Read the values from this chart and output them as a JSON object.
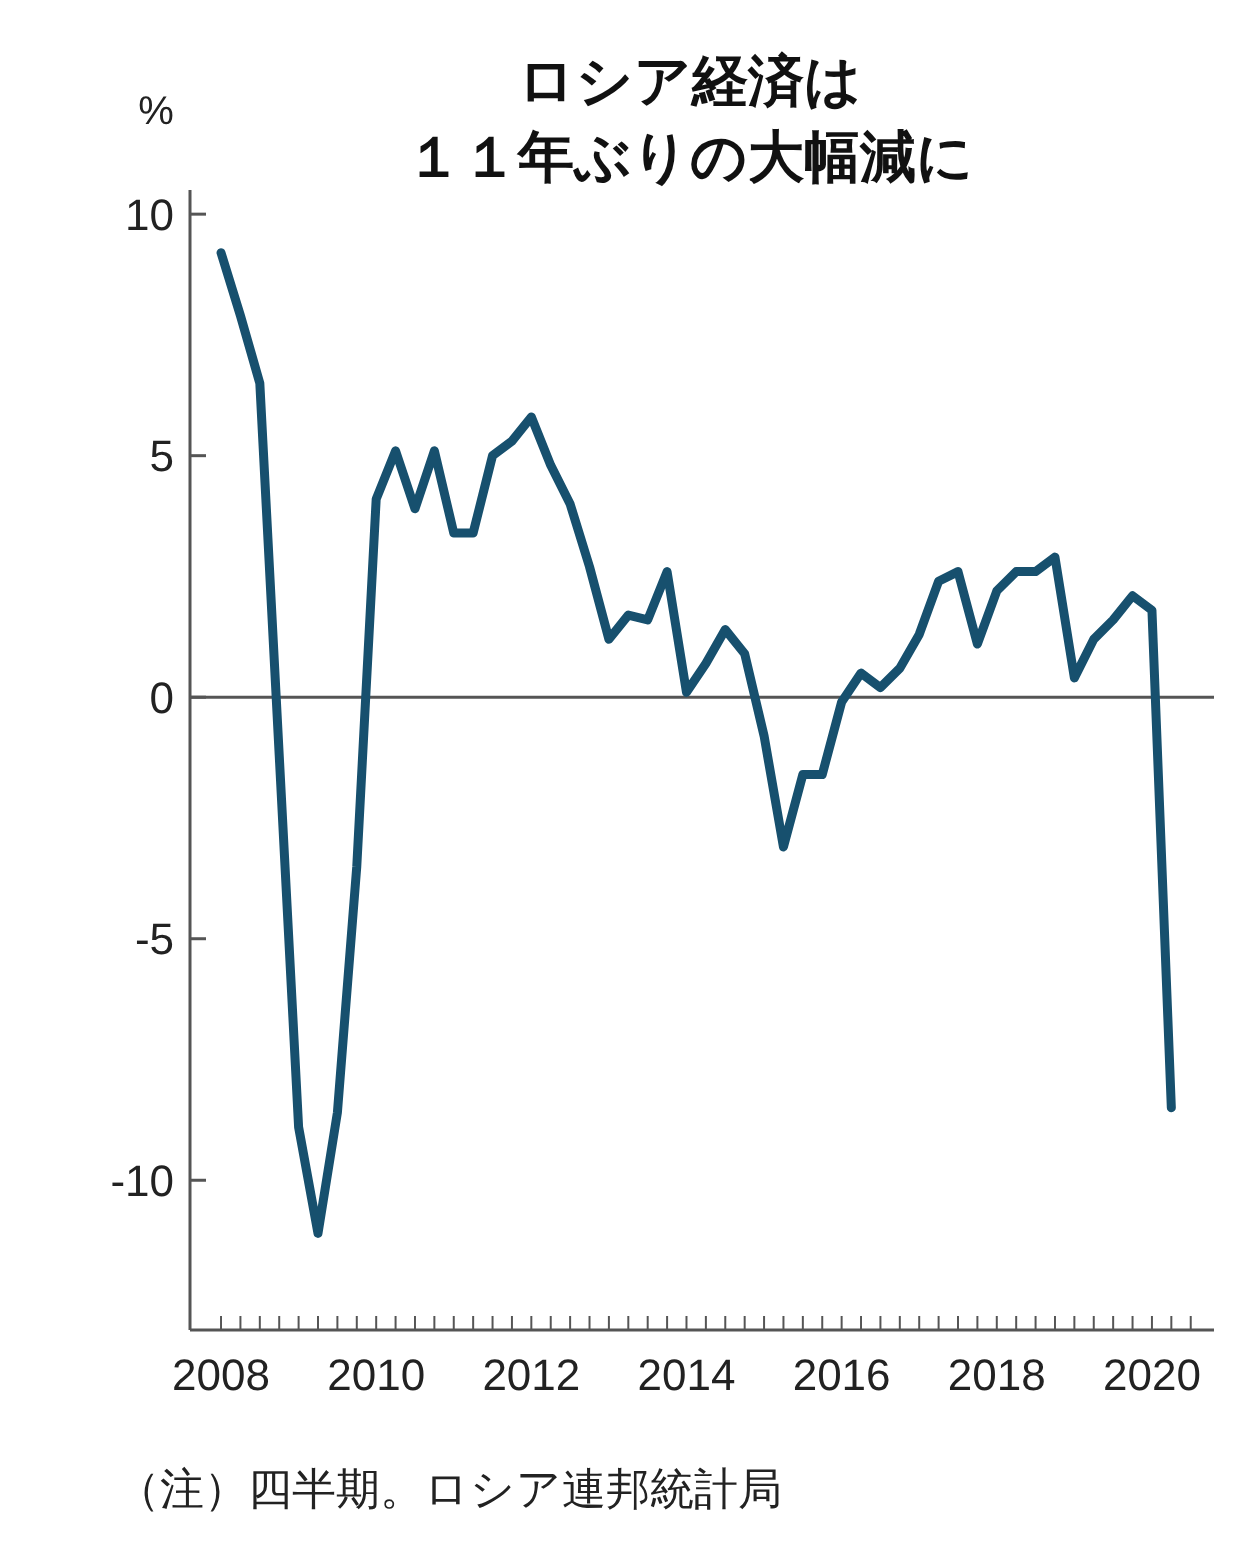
{
  "chart_data": {
    "type": "line",
    "title": "ロシア経済は",
    "subtitle": "１１年ぶりの大幅減に",
    "ylabel": "%",
    "annotations": [
      "（注）四半期。ロシア連邦統計局"
    ],
    "x": [
      2008,
      2008.25,
      2008.5,
      2008.75,
      2009,
      2009.25,
      2009.5,
      2009.75,
      2010,
      2010.25,
      2010.5,
      2010.75,
      2011,
      2011.25,
      2011.5,
      2011.75,
      2012,
      2012.25,
      2012.5,
      2012.75,
      2013,
      2013.25,
      2013.5,
      2013.75,
      2014,
      2014.25,
      2014.5,
      2014.75,
      2015,
      2015.25,
      2015.5,
      2015.75,
      2016,
      2016.25,
      2016.5,
      2016.75,
      2017,
      2017.25,
      2017.5,
      2017.75,
      2018,
      2018.25,
      2018.5,
      2018.75,
      2019,
      2019.25,
      2019.5,
      2019.75,
      2020,
      2020.25
    ],
    "series": [
      {
        "color": "#17506e",
        "values": [
          9.2,
          7.9,
          6.5,
          -1.2,
          -8.9,
          -11.1,
          -8.6,
          -3.5,
          4.1,
          5.1,
          3.9,
          5.1,
          3.4,
          3.4,
          5.0,
          5.3,
          5.8,
          4.8,
          4.0,
          2.7,
          1.2,
          1.7,
          1.6,
          2.6,
          0.1,
          0.7,
          1.4,
          0.9,
          -0.8,
          -3.1,
          -1.6,
          -1.6,
          -0.1,
          0.5,
          0.2,
          0.6,
          1.3,
          2.4,
          2.6,
          1.1,
          2.2,
          2.6,
          2.6,
          2.9,
          0.4,
          1.2,
          1.6,
          2.1,
          1.8,
          -8.5
        ]
      }
    ],
    "xlim": [
      2007.6,
      2020.8
    ],
    "xticks": [
      2008,
      {
        "value": 2008.25,
        "label": null
      },
      {
        "value": 2008.5,
        "label": null
      },
      {
        "value": 2008.75,
        "label": null
      },
      {
        "value": 2009,
        "label": null
      },
      {
        "value": 2009.25,
        "label": null
      },
      {
        "value": 2009.5,
        "label": null
      },
      {
        "value": 2009.75,
        "label": null
      },
      2010,
      {
        "value": 2010.25,
        "label": null
      },
      {
        "value": 2010.5,
        "label": null
      },
      {
        "value": 2010.75,
        "label": null
      },
      {
        "value": 2011,
        "label": null
      },
      {
        "value": 2011.25,
        "label": null
      },
      {
        "value": 2011.5,
        "label": null
      },
      {
        "value": 2011.75,
        "label": null
      },
      2012,
      {
        "value": 2012.25,
        "label": null
      },
      {
        "value": 2012.5,
        "label": null
      },
      {
        "value": 2012.75,
        "label": null
      },
      {
        "value": 2013,
        "label": null
      },
      {
        "value": 2013.25,
        "label": null
      },
      {
        "value": 2013.5,
        "label": null
      },
      {
        "value": 2013.75,
        "label": null
      },
      2014,
      {
        "value": 2014.25,
        "label": null
      },
      {
        "value": 2014.5,
        "label": null
      },
      {
        "value": 2014.75,
        "label": null
      },
      {
        "value": 2015,
        "label": null
      },
      {
        "value": 2015.25,
        "label": null
      },
      {
        "value": 2015.5,
        "label": null
      },
      {
        "value": 2015.75,
        "label": null
      },
      2016,
      {
        "value": 2016.25,
        "label": null
      },
      {
        "value": 2016.5,
        "label": null
      },
      {
        "value": 2016.75,
        "label": null
      },
      {
        "value": 2017,
        "label": null
      },
      {
        "value": 2017.25,
        "label": null
      },
      {
        "value": 2017.5,
        "label": null
      },
      {
        "value": 2017.75,
        "label": null
      },
      2018,
      {
        "value": 2018.25,
        "label": null
      },
      {
        "value": 2018.5,
        "label": null
      },
      {
        "value": 2018.75,
        "label": null
      },
      {
        "value": 2019,
        "label": null
      },
      {
        "value": 2019.25,
        "label": null
      },
      {
        "value": 2019.5,
        "label": null
      },
      {
        "value": 2019.75,
        "label": null
      },
      2020,
      {
        "value": 2020.25,
        "label": null
      },
      {
        "value": 2020.5,
        "label": null
      }
    ],
    "ylim": [
      -13.1,
      10.5
    ],
    "yticks": [
      10,
      5,
      0,
      -5,
      -10
    ],
    "ref_lines": [
      {
        "axis": "y",
        "value": 0,
        "color": "#555555"
      }
    ],
    "grid": false,
    "marker": "none",
    "line_style": "solid"
  }
}
